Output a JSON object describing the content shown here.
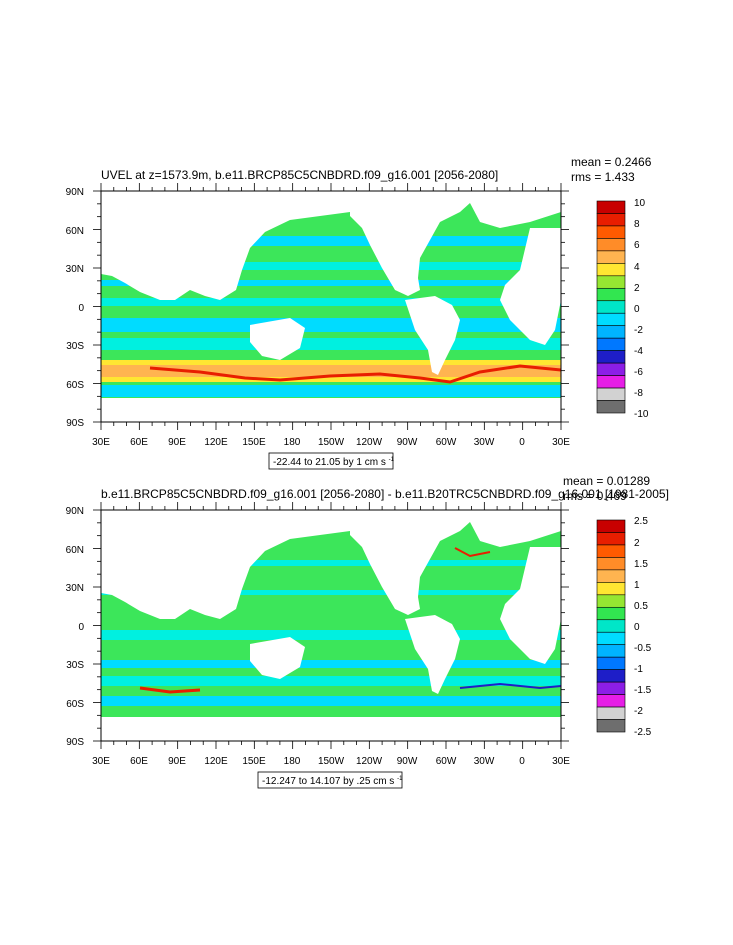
{
  "panels": [
    {
      "title": "UVEL at z=1573.9m, b.e11.BRCP85C5CNBDRD.f09_g16.001 [2056-2080]",
      "stats": {
        "mean": "mean = 0.2466",
        "rms": "rms = 1.433"
      },
      "range_label": "-22.44 to 21.05 by 1 cm s",
      "range_unit_exp": "-1",
      "lat_labels": [
        "90N",
        "60N",
        "30N",
        "0",
        "30S",
        "60S",
        "90S"
      ],
      "lon_labels": [
        "30E",
        "60E",
        "90E",
        "120E",
        "150E",
        "180",
        "150W",
        "120W",
        "90W",
        "60W",
        "30W",
        "0",
        "30E"
      ],
      "colorbar": {
        "labels": [
          "10",
          "8",
          "6",
          "4",
          "2",
          "0",
          "-2",
          "-4",
          "-6",
          "-8",
          "-10"
        ],
        "colors": [
          "#c80000",
          "#e81e00",
          "#ff5a00",
          "#ff8c28",
          "#ffb450",
          "#ffe632",
          "#96e632",
          "#32e650",
          "#00e6c8",
          "#00dcff",
          "#00b4ff",
          "#0078ff",
          "#1e1ec8",
          "#8c1ee6",
          "#e61ee6",
          "#d2d2d2",
          "#6e6e6e"
        ]
      }
    },
    {
      "title": "b.e11.BRCP85C5CNBDRD.f09_g16.001 [2056-2080] - b.e11.B20TRC5CNBDRD.f09_g16.001 [1981-2005]",
      "stats": {
        "mean": "mean = 0.01289",
        "rms": "rms = 0.469"
      },
      "range_label": "-12.247 to 14.107 by .25 cm s",
      "range_unit_exp": "-1",
      "lat_labels": [
        "90N",
        "60N",
        "30N",
        "0",
        "30S",
        "60S",
        "90S"
      ],
      "lon_labels": [
        "30E",
        "60E",
        "90E",
        "120E",
        "150E",
        "180",
        "150W",
        "120W",
        "90W",
        "60W",
        "30W",
        "0",
        "30E"
      ],
      "colorbar": {
        "labels": [
          "2.5",
          "2",
          "1.5",
          "1",
          "0.5",
          "0",
          "-0.5",
          "-1",
          "-1.5",
          "-2",
          "-2.5"
        ],
        "colors": [
          "#c80000",
          "#e81e00",
          "#ff5a00",
          "#ff8c28",
          "#ffb450",
          "#ffe632",
          "#96e632",
          "#32e650",
          "#00e6c8",
          "#00dcff",
          "#00b4ff",
          "#0078ff",
          "#1e1ec8",
          "#8c1ee6",
          "#e61ee6",
          "#d2d2d2",
          "#6e6e6e"
        ]
      }
    }
  ],
  "palette": {
    "ocean_main": "#3ce65a",
    "ocean_alt": "#00dcff",
    "ocean_mid": "#00f0e0",
    "land": "#ffffff",
    "acc_warm": "#ffb450",
    "acc_hot": "#e81e00"
  }
}
